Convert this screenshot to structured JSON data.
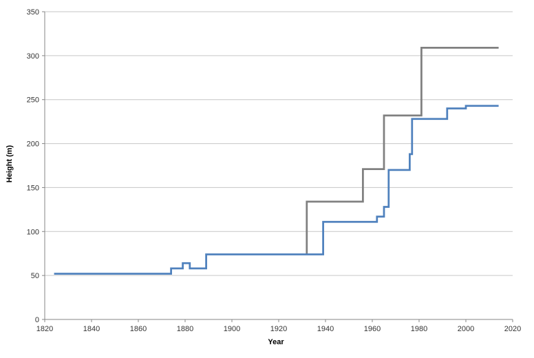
{
  "chart_data": {
    "type": "line",
    "line_style": "step",
    "title": "",
    "xlabel": "Year",
    "ylabel": "Height (m)",
    "xlim": [
      1820,
      2020
    ],
    "ylim": [
      0,
      350
    ],
    "x_ticks": [
      1820,
      1840,
      1860,
      1880,
      1900,
      1920,
      1940,
      1960,
      1980,
      2000,
      2020
    ],
    "y_ticks": [
      0,
      50,
      100,
      150,
      200,
      250,
      300,
      350
    ],
    "grid": "horizontal-only",
    "legend_position": "none",
    "series": [
      {
        "name": "gray-line",
        "color": "#808080",
        "points": [
          [
            1932,
            74
          ],
          [
            1932,
            134
          ],
          [
            1956,
            134
          ],
          [
            1956,
            171
          ],
          [
            1965,
            171
          ],
          [
            1965,
            232
          ],
          [
            1981,
            232
          ],
          [
            1981,
            309
          ],
          [
            2014,
            309
          ]
        ]
      },
      {
        "name": "blue-line",
        "color": "#4F81BD",
        "points": [
          [
            1824,
            52
          ],
          [
            1874,
            52
          ],
          [
            1874,
            58
          ],
          [
            1879,
            58
          ],
          [
            1879,
            64
          ],
          [
            1882,
            64
          ],
          [
            1882,
            58
          ],
          [
            1889,
            58
          ],
          [
            1889,
            74
          ],
          [
            1939,
            74
          ],
          [
            1939,
            111
          ],
          [
            1962,
            111
          ],
          [
            1962,
            117
          ],
          [
            1965,
            117
          ],
          [
            1965,
            128
          ],
          [
            1967,
            128
          ],
          [
            1967,
            170
          ],
          [
            1976,
            170
          ],
          [
            1976,
            188
          ],
          [
            1977,
            188
          ],
          [
            1977,
            228
          ],
          [
            1992,
            228
          ],
          [
            1992,
            240
          ],
          [
            2000,
            240
          ],
          [
            2000,
            243
          ],
          [
            2014,
            243
          ]
        ]
      }
    ],
    "colors": {
      "gridline": "#c6c6c6",
      "axis": "#868686",
      "tick_label": "#333333",
      "axis_title": "#000000",
      "background": "#ffffff"
    }
  }
}
